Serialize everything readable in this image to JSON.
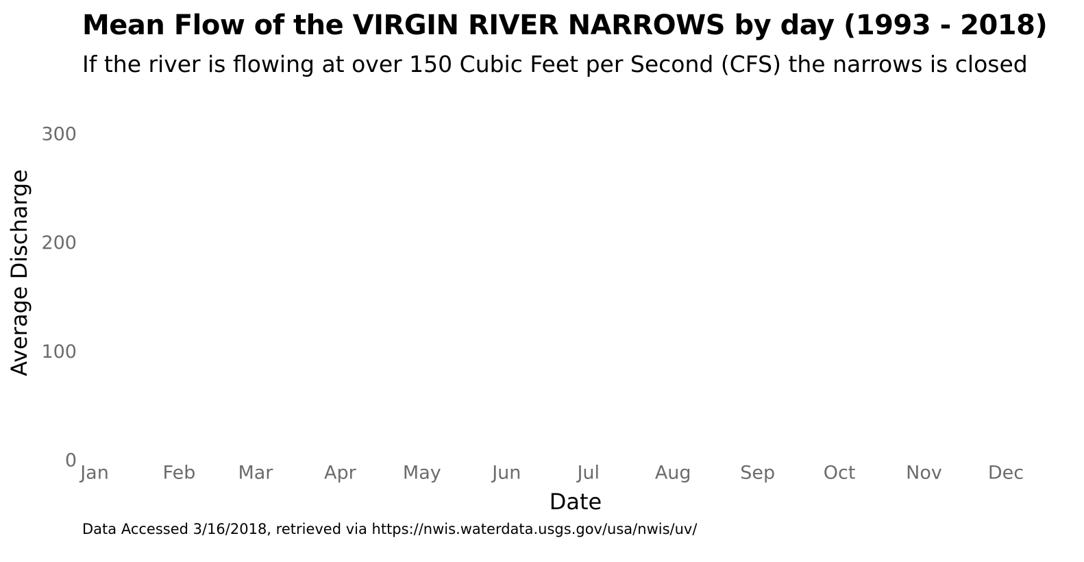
{
  "chart_data": {
    "type": "line",
    "title": "Mean Flow of the VIRGIN RIVER NARROWS by day (1993 - 2018)",
    "subtitle": "If the river is flowing at over 150 Cubic Feet per Second (CFS) the narrows is closed",
    "xlabel": "Date",
    "ylabel": "Average Discharge",
    "caption": "Data Accessed 3/16/2018, retrieved via https://nwis.waterdata.usgs.gov/usa/nwis/uv/",
    "ylim": [
      0,
      300
    ],
    "y_ticks": [
      "0",
      "100",
      "200",
      "300"
    ],
    "x_ticks": [
      "Jan",
      "Feb",
      "Mar",
      "Apr",
      "May",
      "Jun",
      "Jul",
      "Aug",
      "Sep",
      "Oct",
      "Nov",
      "Dec"
    ],
    "grid": false,
    "series": []
  }
}
